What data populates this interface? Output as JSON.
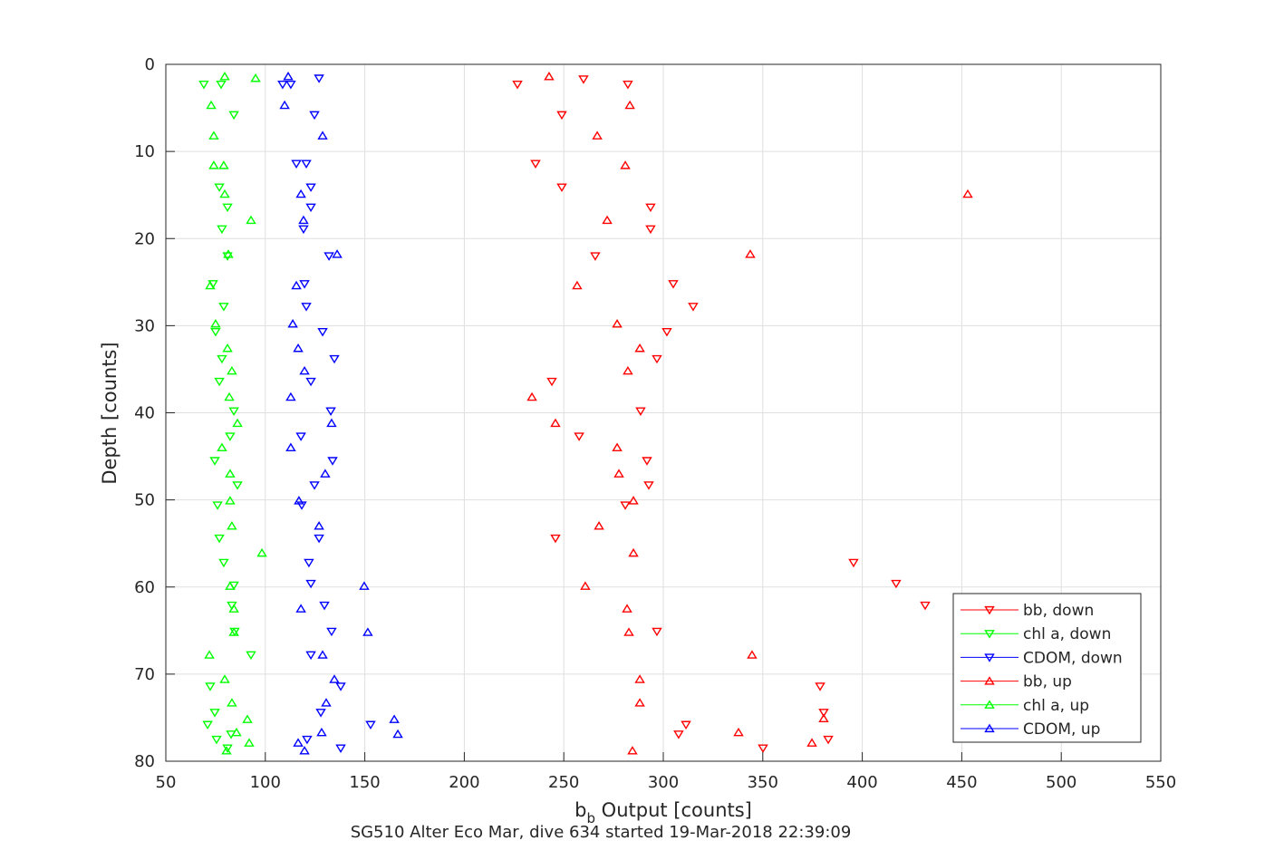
{
  "chart_data": {
    "type": "scatter",
    "title": "SG510 Alter Eco Mar, dive 634 started 19-Mar-2018 22:39:09",
    "xlabel": {
      "main": "b",
      "sub": "b",
      "rest": " Output [counts]"
    },
    "ylabel": "Depth [counts]",
    "xlim": [
      50,
      550
    ],
    "ylim": [
      0,
      80
    ],
    "y_reversed": true,
    "grid": true,
    "xticks": [
      "50",
      "100",
      "150",
      "200",
      "250",
      "300",
      "350",
      "400",
      "450",
      "500",
      "550"
    ],
    "yticks": [
      "0",
      "10",
      "20",
      "30",
      "40",
      "50",
      "60",
      "70",
      "80"
    ],
    "legend_position": "bottom-right",
    "series": [
      {
        "name": "bb, down",
        "color": "#ff0000",
        "marker": "down",
        "points": [
          [
            226.7,
            2.3
          ],
          [
            259.9,
            1.7
          ],
          [
            282.2,
            2.3
          ],
          [
            249,
            5.8
          ],
          [
            235.8,
            11.4
          ],
          [
            249,
            14.1
          ],
          [
            293.6,
            16.4
          ],
          [
            293.6,
            18.9
          ],
          [
            265.8,
            22
          ],
          [
            305,
            25.2
          ],
          [
            315,
            27.8
          ],
          [
            301.8,
            30.7
          ],
          [
            296.8,
            33.8
          ],
          [
            244,
            36.4
          ],
          [
            288.6,
            39.8
          ],
          [
            257.7,
            42.7
          ],
          [
            291.8,
            45.5
          ],
          [
            292.7,
            48.3
          ],
          [
            280.9,
            50.6
          ],
          [
            245.8,
            54.4
          ],
          [
            395.6,
            57.2
          ],
          [
            417,
            59.6
          ],
          [
            431.6,
            62.1
          ],
          [
            296.8,
            65.1
          ],
          [
            378.8,
            71.4
          ],
          [
            380.6,
            74.4
          ],
          [
            311.4,
            75.8
          ],
          [
            307.7,
            76.9
          ],
          [
            382.9,
            77.5
          ],
          [
            350.1,
            78.5
          ]
        ]
      },
      {
        "name": "chl a, down",
        "color": "#00ff00",
        "marker": "down",
        "points": [
          [
            69.1,
            2.3
          ],
          [
            77.8,
            2.3
          ],
          [
            84.2,
            5.8
          ],
          [
            76.9,
            14.1
          ],
          [
            81,
            16.4
          ],
          [
            78.2,
            18.9
          ],
          [
            81,
            22
          ],
          [
            73.7,
            25.2
          ],
          [
            79.1,
            27.8
          ],
          [
            75,
            30.7
          ],
          [
            78.2,
            33.8
          ],
          [
            76.9,
            36.4
          ],
          [
            84.2,
            39.8
          ],
          [
            82.3,
            42.7
          ],
          [
            74.6,
            45.5
          ],
          [
            86,
            48.3
          ],
          [
            76,
            50.6
          ],
          [
            76.9,
            54.4
          ],
          [
            79.1,
            57.2
          ],
          [
            84.2,
            59.8
          ],
          [
            83.2,
            62.1
          ],
          [
            84.6,
            65.1
          ],
          [
            92.8,
            67.8
          ],
          [
            72.3,
            71.4
          ],
          [
            74.6,
            74.4
          ],
          [
            71,
            75.8
          ],
          [
            82.8,
            76.9
          ],
          [
            75.5,
            77.5
          ],
          [
            81,
            78.5
          ]
        ]
      },
      {
        "name": "CDOM, down",
        "color": "#0000ff",
        "marker": "down",
        "points": [
          [
            127,
            1.6
          ],
          [
            108.7,
            2.3
          ],
          [
            112.8,
            2.3
          ],
          [
            124.7,
            5.8
          ],
          [
            115.6,
            11.4
          ],
          [
            120.6,
            11.4
          ],
          [
            122.9,
            14.1
          ],
          [
            122.9,
            16.4
          ],
          [
            119.2,
            18.9
          ],
          [
            132,
            22
          ],
          [
            119.7,
            25.2
          ],
          [
            120.6,
            27.8
          ],
          [
            128.8,
            30.7
          ],
          [
            134.7,
            33.8
          ],
          [
            122.9,
            36.4
          ],
          [
            132.9,
            39.8
          ],
          [
            117.9,
            42.7
          ],
          [
            133.8,
            45.5
          ],
          [
            124.7,
            48.3
          ],
          [
            118.3,
            50.6
          ],
          [
            127,
            54.4
          ],
          [
            121.9,
            57.2
          ],
          [
            122.9,
            59.6
          ],
          [
            129.7,
            62.1
          ],
          [
            133.3,
            65.1
          ],
          [
            122.9,
            67.8
          ],
          [
            137.9,
            71.4
          ],
          [
            127.9,
            74.4
          ],
          [
            152.9,
            75.8
          ],
          [
            121,
            77.5
          ],
          [
            137.9,
            78.5
          ]
        ]
      },
      {
        "name": "bb, up",
        "color": "#ff0000",
        "marker": "up",
        "points": [
          [
            242.6,
            1.4
          ],
          [
            283.2,
            4.7
          ],
          [
            266.8,
            8.2
          ],
          [
            280.9,
            11.6
          ],
          [
            453,
            14.9
          ],
          [
            271.8,
            17.9
          ],
          [
            343.7,
            21.8
          ],
          [
            256.7,
            25.4
          ],
          [
            276.8,
            29.8
          ],
          [
            288.2,
            32.6
          ],
          [
            282.2,
            35.2
          ],
          [
            234,
            38.2
          ],
          [
            245.8,
            41.2
          ],
          [
            276.8,
            44
          ],
          [
            277.7,
            47
          ],
          [
            285,
            50.1
          ],
          [
            267.7,
            53
          ],
          [
            285,
            56.1
          ],
          [
            260.8,
            59.9
          ],
          [
            281.8,
            62.5
          ],
          [
            282.7,
            65.2
          ],
          [
            344.6,
            67.8
          ],
          [
            288.2,
            70.6
          ],
          [
            288.2,
            73.3
          ],
          [
            380.6,
            75.1
          ],
          [
            337.8,
            76.7
          ],
          [
            374.7,
            77.9
          ],
          [
            284.5,
            78.8
          ]
        ]
      },
      {
        "name": "chl a, up",
        "color": "#00ff00",
        "marker": "up",
        "points": [
          [
            79.6,
            1.4
          ],
          [
            95.1,
            1.6
          ],
          [
            72.8,
            4.7
          ],
          [
            74.1,
            8.2
          ],
          [
            74.1,
            11.6
          ],
          [
            79.1,
            11.6
          ],
          [
            79.6,
            14.9
          ],
          [
            92.8,
            17.9
          ],
          [
            81.4,
            21.8
          ],
          [
            72.3,
            25.4
          ],
          [
            75,
            29.8
          ],
          [
            81,
            32.6
          ],
          [
            83.2,
            35.2
          ],
          [
            81.9,
            38.2
          ],
          [
            86,
            41.2
          ],
          [
            78.2,
            44
          ],
          [
            82.3,
            47
          ],
          [
            82.3,
            50.1
          ],
          [
            83.2,
            53
          ],
          [
            98.3,
            56.1
          ],
          [
            82.3,
            59.9
          ],
          [
            84.2,
            62.5
          ],
          [
            84.2,
            65.2
          ],
          [
            71.9,
            67.8
          ],
          [
            79.6,
            70.6
          ],
          [
            83.2,
            73.3
          ],
          [
            91,
            75.2
          ],
          [
            85.5,
            76.7
          ],
          [
            91.9,
            77.9
          ],
          [
            80.5,
            78.8
          ]
        ]
      },
      {
        "name": "CDOM, up",
        "color": "#0000ff",
        "marker": "up",
        "points": [
          [
            111.5,
            1.4
          ],
          [
            109.7,
            4.7
          ],
          [
            128.8,
            8.2
          ],
          [
            117.9,
            14.9
          ],
          [
            119.2,
            17.9
          ],
          [
            136.1,
            21.8
          ],
          [
            115.6,
            25.4
          ],
          [
            113.8,
            29.8
          ],
          [
            116.5,
            32.6
          ],
          [
            119.7,
            35.2
          ],
          [
            112.8,
            38.2
          ],
          [
            133.3,
            41.2
          ],
          [
            112.8,
            44
          ],
          [
            130.1,
            47
          ],
          [
            116.9,
            50.1
          ],
          [
            127,
            53
          ],
          [
            149.7,
            59.9
          ],
          [
            117.9,
            62.5
          ],
          [
            151.5,
            65.2
          ],
          [
            128.8,
            67.8
          ],
          [
            134.7,
            70.6
          ],
          [
            130.6,
            73.3
          ],
          [
            164.8,
            75.2
          ],
          [
            128.3,
            76.7
          ],
          [
            166.6,
            76.9
          ],
          [
            116.5,
            77.9
          ],
          [
            119.7,
            78.8
          ]
        ]
      }
    ]
  }
}
